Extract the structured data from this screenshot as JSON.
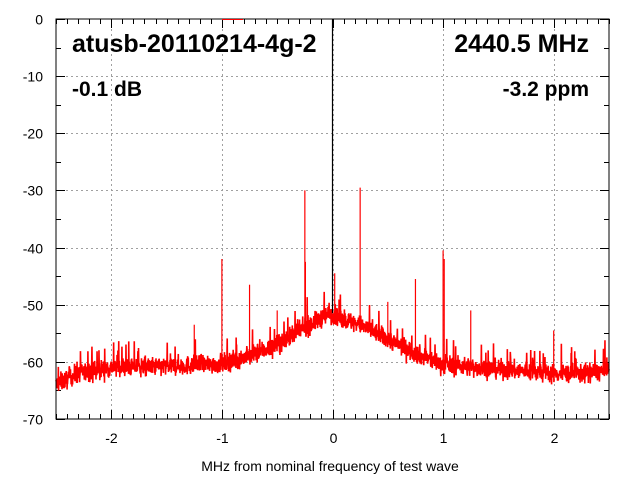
{
  "chart_data": {
    "type": "line",
    "title": "atusb-20110214-4g-2",
    "annotations": {
      "frequency": "2440.5 MHz",
      "level": "-0.1 dB",
      "offset": "-3.2 ppm"
    },
    "xlabel": "MHz from nominal frequency of test wave",
    "ylabel": "",
    "xlim": [
      -2.5,
      2.5
    ],
    "ylim": [
      -70,
      0
    ],
    "xticks": [
      "-2",
      "-1",
      "0",
      "1",
      "2"
    ],
    "xtick_values": [
      -2,
      -1,
      0,
      1,
      2
    ],
    "yticks": [
      "0",
      "-10",
      "-20",
      "-30",
      "-40",
      "-50",
      "-60",
      "-70"
    ],
    "ytick_values": [
      0,
      -10,
      -20,
      -30,
      -40,
      -50,
      -60,
      -70
    ],
    "grid": true,
    "series_color": "#ff0000",
    "noise_floor_envelope": [
      [
        -2.5,
        -64
      ],
      [
        -2.3,
        -62
      ],
      [
        -2.0,
        -61
      ],
      [
        -1.5,
        -60.8
      ],
      [
        -1.0,
        -60.3
      ],
      [
        -0.75,
        -59
      ],
      [
        -0.5,
        -57
      ],
      [
        -0.25,
        -54
      ],
      [
        -0.05,
        -51.8
      ],
      [
        0.0,
        -51.5
      ],
      [
        0.05,
        -52.3
      ],
      [
        0.25,
        -53.5
      ],
      [
        0.5,
        -56
      ],
      [
        0.75,
        -58.5
      ],
      [
        1.0,
        -60.5
      ],
      [
        1.5,
        -61.3
      ],
      [
        2.0,
        -62
      ],
      [
        2.3,
        -62
      ],
      [
        2.5,
        -61.5
      ]
    ],
    "spurs": [
      {
        "x": 0.0,
        "y": 0
      },
      {
        "x": -0.25,
        "y": -30
      },
      {
        "x": 0.25,
        "y": -29.5
      },
      {
        "x": -0.245,
        "y": -42.5
      },
      {
        "x": 0.02,
        "y": -44.5
      },
      {
        "x": -1.0,
        "y": -42
      },
      {
        "x": 1.0,
        "y": -40.5
      },
      {
        "x": 1.01,
        "y": -42
      },
      {
        "x": -0.75,
        "y": -46.5
      },
      {
        "x": 0.75,
        "y": -45.5
      },
      {
        "x": -0.5,
        "y": -51
      },
      {
        "x": 0.5,
        "y": -49.5
      },
      {
        "x": 1.25,
        "y": -51
      },
      {
        "x": -1.25,
        "y": -53.5
      },
      {
        "x": 2.0,
        "y": -54.5
      }
    ]
  }
}
